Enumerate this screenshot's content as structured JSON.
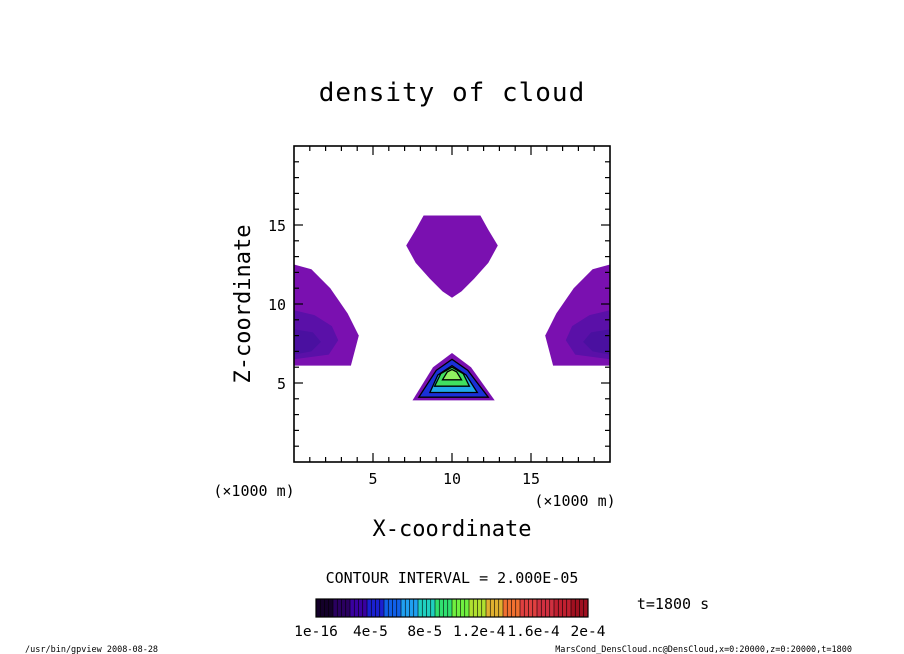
{
  "chart_data": {
    "type": "heatmap",
    "title": "density of cloud",
    "xlabel": "X-coordinate",
    "ylabel": "Z-coordinate",
    "x_unit": "(×1000 m)",
    "y_unit": "(×1000 m)",
    "xlim": [
      0,
      20
    ],
    "ylim": [
      0,
      20
    ],
    "x_ticks": [
      5,
      10,
      15
    ],
    "y_ticks": [
      5,
      10,
      15
    ],
    "x_minor_step": 1,
    "y_minor_step": 1,
    "contour_interval_text": "CONTOUR INTERVAL = 2.000E-05",
    "time_label": "t=1800 s",
    "colorbar": {
      "colors": [
        "#14002a",
        "#2a0060",
        "#3a00a0",
        "#1a20d0",
        "#1060e8",
        "#20a0f0",
        "#20d0c0",
        "#30e070",
        "#70f040",
        "#b0e030",
        "#e0b030",
        "#f07030",
        "#e04040",
        "#d03040",
        "#c02030",
        "#a01020"
      ],
      "tick_labels": [
        "1e-16",
        "4e-5",
        "8e-5",
        "1.2e-4",
        "1.6e-4",
        "2e-4"
      ]
    },
    "regions": [
      {
        "name": "upper-center-blob",
        "level": "low",
        "color": "#7a10b0",
        "polygon": [
          [
            7.1,
            13.7
          ],
          [
            7.7,
            14.7
          ],
          [
            8.2,
            15.6
          ],
          [
            11.8,
            15.6
          ],
          [
            12.3,
            14.7
          ],
          [
            12.9,
            13.7
          ],
          [
            12.3,
            12.6
          ],
          [
            11.4,
            11.6
          ],
          [
            10.6,
            10.8
          ],
          [
            10.0,
            10.4
          ],
          [
            9.4,
            10.8
          ],
          [
            8.6,
            11.6
          ],
          [
            7.7,
            12.6
          ]
        ]
      },
      {
        "name": "left-edge-blob",
        "level": "low",
        "color": "#7a10b0",
        "polygon": [
          [
            0,
            12.5
          ],
          [
            1.1,
            12.2
          ],
          [
            2.3,
            11.0
          ],
          [
            3.4,
            9.4
          ],
          [
            4.1,
            8.0
          ],
          [
            3.6,
            6.1
          ],
          [
            0,
            6.1
          ]
        ]
      },
      {
        "name": "left-edge-core",
        "level": "low-mid",
        "color": "#5a10a8",
        "polygon": [
          [
            0,
            9.6
          ],
          [
            1.3,
            9.3
          ],
          [
            2.4,
            8.6
          ],
          [
            2.8,
            7.7
          ],
          [
            2.2,
            6.8
          ],
          [
            0,
            6.5
          ]
        ]
      },
      {
        "name": "left-edge-inner",
        "level": "mid",
        "color": "#4a10a0",
        "polygon": [
          [
            0,
            8.4
          ],
          [
            1.2,
            8.2
          ],
          [
            1.7,
            7.6
          ],
          [
            1.1,
            7.0
          ],
          [
            0,
            6.8
          ]
        ]
      },
      {
        "name": "right-edge-blob",
        "level": "low",
        "color": "#7a10b0",
        "polygon": [
          [
            20,
            12.5
          ],
          [
            18.9,
            12.2
          ],
          [
            17.7,
            11.0
          ],
          [
            16.6,
            9.4
          ],
          [
            15.9,
            8.0
          ],
          [
            16.4,
            6.1
          ],
          [
            20,
            6.1
          ]
        ]
      },
      {
        "name": "right-edge-core",
        "level": "low-mid",
        "color": "#5a10a8",
        "polygon": [
          [
            20,
            9.6
          ],
          [
            18.7,
            9.3
          ],
          [
            17.6,
            8.6
          ],
          [
            17.2,
            7.7
          ],
          [
            17.8,
            6.8
          ],
          [
            20,
            6.5
          ]
        ]
      },
      {
        "name": "right-edge-inner",
        "level": "mid",
        "color": "#4a10a0",
        "polygon": [
          [
            20,
            8.4
          ],
          [
            18.8,
            8.2
          ],
          [
            18.3,
            7.6
          ],
          [
            18.9,
            7.0
          ],
          [
            20,
            6.8
          ]
        ]
      },
      {
        "name": "lower-cone-outer",
        "level": "low",
        "color": "#7a10b0",
        "polygon": [
          [
            7.5,
            3.9
          ],
          [
            12.7,
            3.9
          ],
          [
            11.2,
            6.0
          ],
          [
            10.0,
            6.9
          ],
          [
            8.8,
            6.0
          ]
        ]
      },
      {
        "name": "lower-cone-blue",
        "level": "mid",
        "color": "#1a30d8",
        "polygon": [
          [
            7.9,
            4.1
          ],
          [
            12.3,
            4.1
          ],
          [
            11.0,
            5.8
          ],
          [
            10.0,
            6.5
          ],
          [
            9.0,
            5.8
          ]
        ]
      },
      {
        "name": "lower-cone-cyan",
        "level": "mid-high",
        "color": "#20a8e8",
        "polygon": [
          [
            8.6,
            4.4
          ],
          [
            11.6,
            4.4
          ],
          [
            10.9,
            5.5
          ],
          [
            10.0,
            6.1
          ],
          [
            9.1,
            5.5
          ]
        ]
      },
      {
        "name": "lower-cone-green",
        "level": "high",
        "color": "#40e060",
        "polygon": [
          [
            8.9,
            4.8
          ],
          [
            11.1,
            4.8
          ],
          [
            10.7,
            5.6
          ],
          [
            10.0,
            6.0
          ],
          [
            9.3,
            5.6
          ]
        ]
      },
      {
        "name": "lower-cone-lime",
        "level": "higher",
        "color": "#90f060",
        "polygon": [
          [
            9.4,
            5.2
          ],
          [
            10.6,
            5.2
          ],
          [
            10.3,
            5.7
          ],
          [
            10.0,
            5.85
          ],
          [
            9.7,
            5.7
          ]
        ]
      }
    ]
  },
  "footer": {
    "left": "/usr/bin/gpview   2008-08-28",
    "right": "MarsCond_DensCloud.nc@DensCloud,x=0:20000,z=0:20000,t=1800"
  }
}
